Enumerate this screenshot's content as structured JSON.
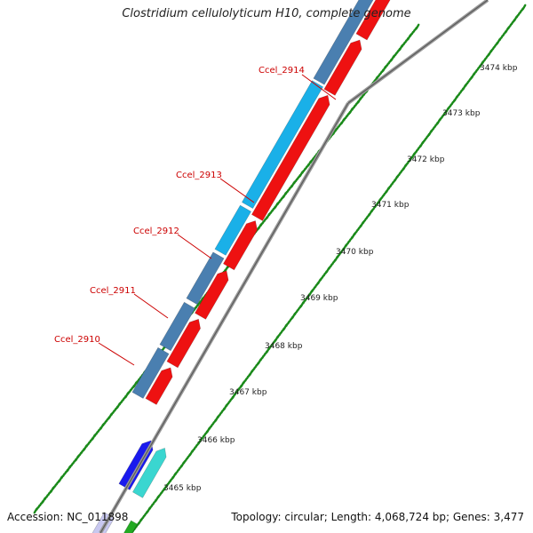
{
  "title": "Clostridium cellulolyticum H10, complete genome",
  "accession": "Accession: NC_011898",
  "summary": "Topology: circular; Length: 4,068,724 bp; Genes: 3,477",
  "colors": {
    "backbone": "#9a9a9a",
    "forward_gene": "#4a7fb0",
    "forward_gene_light": "#1ab0e8",
    "reverse_gene": "#ee1111",
    "blue_gene": "#1a1aee",
    "cyan_gene": "#3ad6d0",
    "tick": "#1a8a1a",
    "label_red": "#cc0000"
  },
  "ticks": [
    {
      "label": "3465 kbp"
    },
    {
      "label": "3466 kbp"
    },
    {
      "label": "3467 kbp"
    },
    {
      "label": "3468 kbp"
    },
    {
      "label": "3469 kbp"
    },
    {
      "label": "3470 kbp"
    },
    {
      "label": "3471 kbp"
    },
    {
      "label": "3472 kbp"
    },
    {
      "label": "3473 kbp"
    },
    {
      "label": "3474 kbp"
    }
  ],
  "gene_labels": [
    {
      "label": "Ccel_2914"
    },
    {
      "label": "Ccel_2913"
    },
    {
      "label": "Ccel_2912"
    },
    {
      "label": "Ccel_2911"
    },
    {
      "label": "Ccel_2910"
    }
  ]
}
